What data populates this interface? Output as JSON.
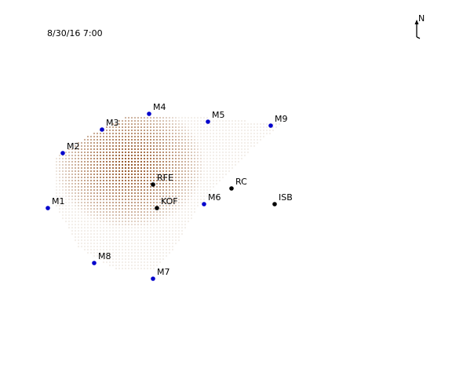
{
  "timestamp": "8/30/16 7:00",
  "north_label": "N",
  "colors": {
    "monitor_marker": "#0000cc",
    "site_marker": "#000000",
    "concentration_high": "#8b4513",
    "concentration_low": "#f2ede8"
  },
  "stations": [
    {
      "id": "M1",
      "label": "M1",
      "kind": "monitor"
    },
    {
      "id": "M2",
      "label": "M2",
      "kind": "monitor"
    },
    {
      "id": "M3",
      "label": "M3",
      "kind": "monitor"
    },
    {
      "id": "M4",
      "label": "M4",
      "kind": "monitor"
    },
    {
      "id": "M5",
      "label": "M5",
      "kind": "monitor"
    },
    {
      "id": "M6",
      "label": "M6",
      "kind": "monitor"
    },
    {
      "id": "M7",
      "label": "M7",
      "kind": "monitor"
    },
    {
      "id": "M8",
      "label": "M8",
      "kind": "monitor"
    },
    {
      "id": "M9",
      "label": "M9",
      "kind": "monitor"
    },
    {
      "id": "RFE",
      "label": "RFE",
      "kind": "site"
    },
    {
      "id": "KOF",
      "label": "KOF",
      "kind": "site"
    },
    {
      "id": "RC",
      "label": "RC",
      "kind": "site"
    },
    {
      "id": "ISB",
      "label": "ISB",
      "kind": "site"
    }
  ]
}
